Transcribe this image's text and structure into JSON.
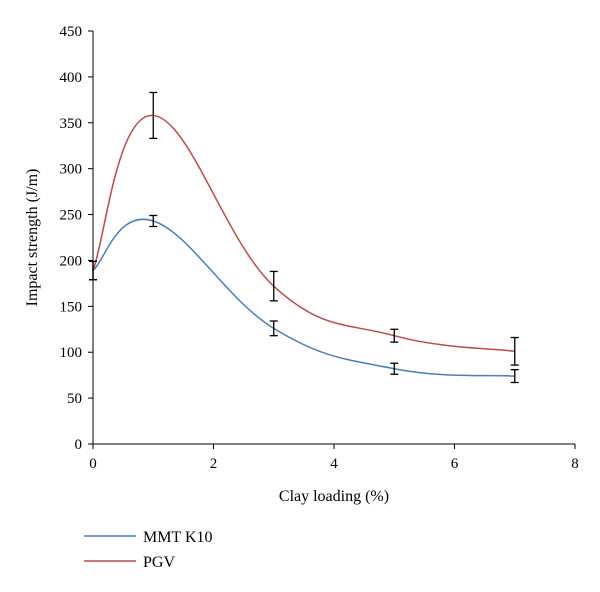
{
  "chart_data": {
    "type": "line",
    "title": "",
    "xlabel": "Clay loading (%)",
    "ylabel": "Impact strength (J/m)",
    "xlim": [
      0,
      8
    ],
    "ylim": [
      0,
      450
    ],
    "xticks": [
      0,
      2,
      4,
      6,
      8
    ],
    "yticks": [
      0,
      50,
      100,
      150,
      200,
      250,
      300,
      350,
      400,
      450
    ],
    "grid": false,
    "smooth": true,
    "legend": "bottom-left",
    "series": [
      {
        "name": "MMT K10",
        "color": "#4a7ebb",
        "x": [
          0,
          1,
          3,
          5,
          7
        ],
        "y": [
          189,
          243,
          126,
          82,
          74
        ],
        "error": [
          10,
          6,
          8,
          6,
          7
        ]
      },
      {
        "name": "PGV",
        "color": "#be4b48",
        "x": [
          0,
          1,
          3,
          5,
          7
        ],
        "y": [
          189,
          358,
          172,
          118,
          101
        ],
        "error": [
          10,
          25,
          16,
          7,
          15
        ]
      }
    ]
  }
}
